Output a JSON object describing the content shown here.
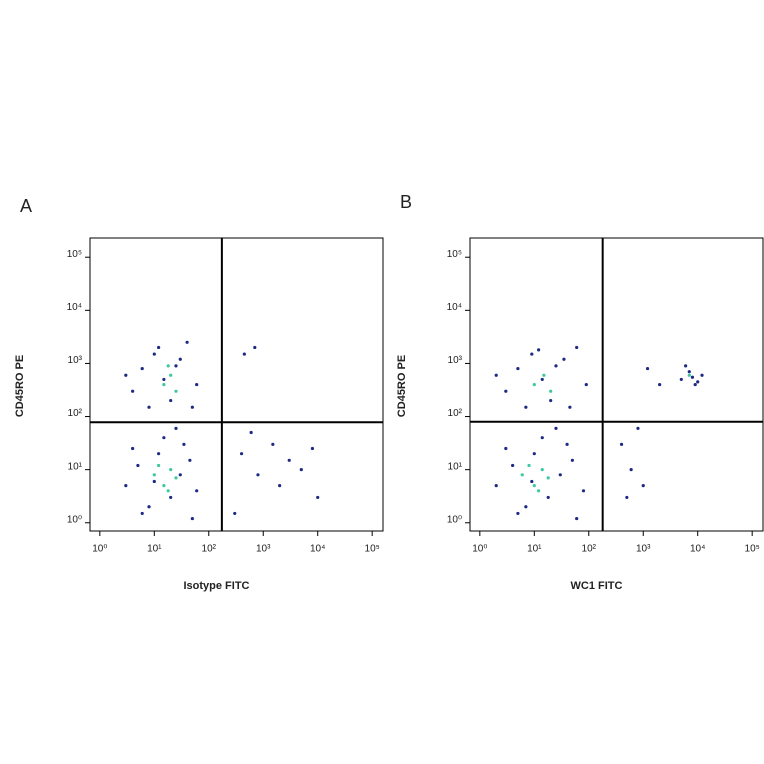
{
  "chart_data": [
    {
      "type": "scatter",
      "panel_label": "A",
      "xlabel": "Isotype FITC",
      "ylabel": "CD45RO PE",
      "log_x": true,
      "log_y": true,
      "xlim": [
        0.66,
        158000
      ],
      "ylim": [
        0.7,
        230000
      ],
      "xticks": [
        {
          "value": 1,
          "label": "10⁰"
        },
        {
          "value": 10,
          "label": "10¹"
        },
        {
          "value": 100,
          "label": "10²"
        },
        {
          "value": 1000,
          "label": "10³"
        },
        {
          "value": 10000,
          "label": "10⁴"
        },
        {
          "value": 100000,
          "label": "10⁵"
        }
      ],
      "yticks": [
        {
          "value": 1,
          "label": "10⁰"
        },
        {
          "value": 10,
          "label": "10¹"
        },
        {
          "value": 100,
          "label": "10²"
        },
        {
          "value": 1000,
          "label": "10³"
        },
        {
          "value": 10000,
          "label": "10⁴"
        },
        {
          "value": 100000,
          "label": "10⁵"
        }
      ],
      "gates": {
        "x": 174,
        "y": 78
      },
      "series": [
        {
          "color": "#1c2a86",
          "x": [
            3,
            5,
            8,
            12,
            20,
            30,
            45,
            60,
            6,
            15,
            25,
            10,
            4,
            50,
            35,
            4,
            6,
            10,
            15,
            20,
            30,
            40,
            60,
            8,
            25,
            50,
            12,
            3,
            400,
            800,
            1500,
            3000,
            5000,
            600,
            2000,
            8000,
            300,
            450,
            700,
            10000
          ],
          "y": [
            5,
            12,
            2,
            20,
            3,
            8,
            15,
            4,
            1.5,
            40,
            60,
            6,
            25,
            1.2,
            30,
            300,
            800,
            1500,
            500,
            200,
            1200,
            2500,
            400,
            150,
            900,
            150,
            2000,
            600,
            20,
            8,
            30,
            15,
            10,
            50,
            5,
            25,
            1.5,
            1500,
            2000,
            3
          ]
        },
        {
          "color": "#3cc8a0",
          "x": [
            10,
            15,
            20,
            12,
            18,
            25,
            15,
            20,
            25,
            18
          ],
          "y": [
            8,
            5,
            10,
            12,
            4,
            7,
            400,
            600,
            300,
            900
          ]
        }
      ]
    },
    {
      "type": "scatter",
      "panel_label": "B",
      "xlabel": "WC1 FITC",
      "ylabel": "CD45RO PE",
      "log_x": true,
      "log_y": true,
      "xlim": [
        0.66,
        158000
      ],
      "ylim": [
        0.7,
        230000
      ],
      "xticks": [
        {
          "value": 1,
          "label": "10⁰"
        },
        {
          "value": 10,
          "label": "10¹"
        },
        {
          "value": 100,
          "label": "10²"
        },
        {
          "value": 1000,
          "label": "10³"
        },
        {
          "value": 10000,
          "label": "10⁴"
        },
        {
          "value": 100000,
          "label": "10⁵"
        }
      ],
      "yticks": [
        {
          "value": 1,
          "label": "10⁰"
        },
        {
          "value": 10,
          "label": "10¹"
        },
        {
          "value": 100,
          "label": "10²"
        },
        {
          "value": 1000,
          "label": "10³"
        },
        {
          "value": 10000,
          "label": "10⁴"
        },
        {
          "value": 100000,
          "label": "10⁵"
        }
      ],
      "gates": {
        "x": 180,
        "y": 80
      },
      "series": [
        {
          "color": "#1c2a86",
          "x": [
            2,
            4,
            7,
            10,
            18,
            30,
            50,
            80,
            5,
            14,
            25,
            9,
            3,
            60,
            40,
            3,
            5,
            9,
            14,
            20,
            35,
            60,
            90,
            7,
            25,
            45,
            12,
            2,
            400,
            600,
            1000,
            800,
            500,
            5000,
            7000,
            9000,
            6000,
            12000,
            8000,
            1200,
            2000,
            10000
          ],
          "y": [
            5,
            12,
            2,
            20,
            3,
            8,
            15,
            4,
            1.5,
            40,
            60,
            6,
            25,
            1.2,
            30,
            300,
            800,
            1500,
            500,
            200,
            1200,
            2000,
            400,
            150,
            900,
            150,
            1800,
            600,
            30,
            10,
            5,
            60,
            3,
            500,
            700,
            400,
            900,
            600,
            550,
            800,
            400,
            450
          ]
        },
        {
          "color": "#3cc8a0",
          "x": [
            6,
            10,
            14,
            8,
            12,
            18,
            10,
            15,
            20,
            7000
          ],
          "y": [
            8,
            5,
            10,
            12,
            4,
            7,
            400,
            600,
            300,
            600
          ]
        }
      ]
    }
  ]
}
